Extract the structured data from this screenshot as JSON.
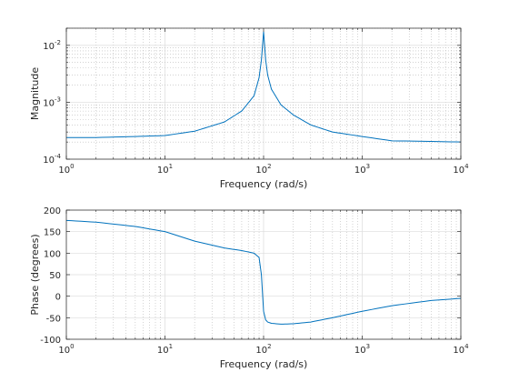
{
  "chart_data": [
    {
      "type": "line",
      "xlabel": "Frequency (rad/s)",
      "ylabel": "Magnitude",
      "xscale": "log",
      "yscale": "log",
      "xlim": [
        1,
        10000
      ],
      "ylim": [
        0.0001,
        0.02
      ],
      "grid": "major and minor (dotted)",
      "xticks": [
        {
          "base": "10",
          "exp": "0",
          "value": 1
        },
        {
          "base": "10",
          "exp": "1",
          "value": 10
        },
        {
          "base": "10",
          "exp": "2",
          "value": 100
        },
        {
          "base": "10",
          "exp": "3",
          "value": 1000
        },
        {
          "base": "10",
          "exp": "4",
          "value": 10000
        }
      ],
      "yticks": [
        {
          "base": "10",
          "exp": "-2",
          "value": 0.01
        },
        {
          "base": "10",
          "exp": "-3",
          "value": 0.001
        },
        {
          "base": "10",
          "exp": "-4",
          "value": 0.0001
        }
      ],
      "series": [
        {
          "color": "#0072bd",
          "x": [
            1,
            2,
            5,
            10,
            20,
            40,
            60,
            80,
            90,
            95,
            100,
            105,
            110,
            120,
            150,
            200,
            300,
            500,
            1000,
            2000,
            5000,
            10000
          ],
          "y": [
            0.00024,
            0.00024,
            0.00025,
            0.00026,
            0.00031,
            0.00045,
            0.0007,
            0.0013,
            0.0027,
            0.0055,
            0.0175,
            0.0055,
            0.003,
            0.0017,
            0.0009,
            0.0006,
            0.0004,
            0.0003,
            0.00025,
            0.00021,
            0.000205,
            0.0002
          ]
        }
      ]
    },
    {
      "type": "line",
      "xlabel": "Frequency (rad/s)",
      "ylabel": "Phase (degrees)",
      "xscale": "log",
      "xlim": [
        1,
        10000
      ],
      "ylim": [
        -100,
        200
      ],
      "grid": "major and minor (dotted)",
      "xticks": [
        {
          "base": "10",
          "exp": "0",
          "value": 1
        },
        {
          "base": "10",
          "exp": "1",
          "value": 10
        },
        {
          "base": "10",
          "exp": "2",
          "value": 100
        },
        {
          "base": "10",
          "exp": "3",
          "value": 1000
        },
        {
          "base": "10",
          "exp": "4",
          "value": 10000
        }
      ],
      "yticks": [
        "200",
        "150",
        "100",
        "50",
        "0",
        "-50",
        "-100"
      ],
      "series": [
        {
          "color": "#0072bd",
          "x": [
            1,
            2,
            5,
            10,
            20,
            40,
            60,
            80,
            90,
            95,
            100,
            105,
            110,
            120,
            150,
            200,
            300,
            500,
            1000,
            2000,
            5000,
            10000
          ],
          "y": [
            176,
            172,
            162,
            150,
            128,
            112,
            106,
            100,
            90,
            50,
            -35,
            -55,
            -60,
            -63,
            -65,
            -64,
            -60,
            -50,
            -35,
            -22,
            -10,
            -5
          ]
        }
      ]
    }
  ]
}
